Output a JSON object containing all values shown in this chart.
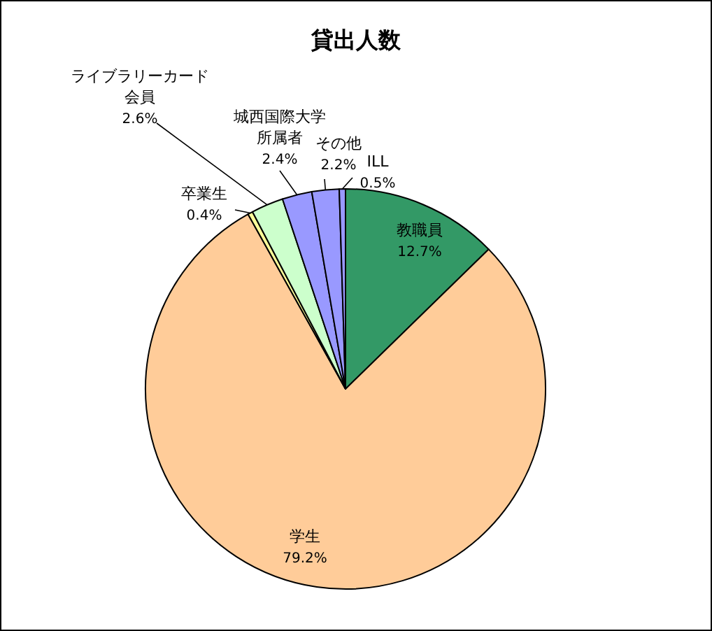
{
  "chart_data": {
    "type": "pie",
    "title": "貸出人数",
    "categories": [
      "教職員",
      "学生",
      "卒業生",
      "ライブラリーカード会員",
      "城西国際大学所属者",
      "その他",
      "ILL"
    ],
    "values": [
      12.7,
      79.2,
      0.4,
      2.6,
      2.4,
      2.2,
      0.5
    ],
    "value_labels": [
      "12.7%",
      "79.2%",
      "0.4%",
      "2.6%",
      "2.4%",
      "2.2%",
      "0.5%"
    ],
    "colors": [
      "#339966",
      "#ffcc99",
      "#ffff99",
      "#ccffcc",
      "#9999ff",
      "#9999ff",
      "#9999ff"
    ]
  }
}
